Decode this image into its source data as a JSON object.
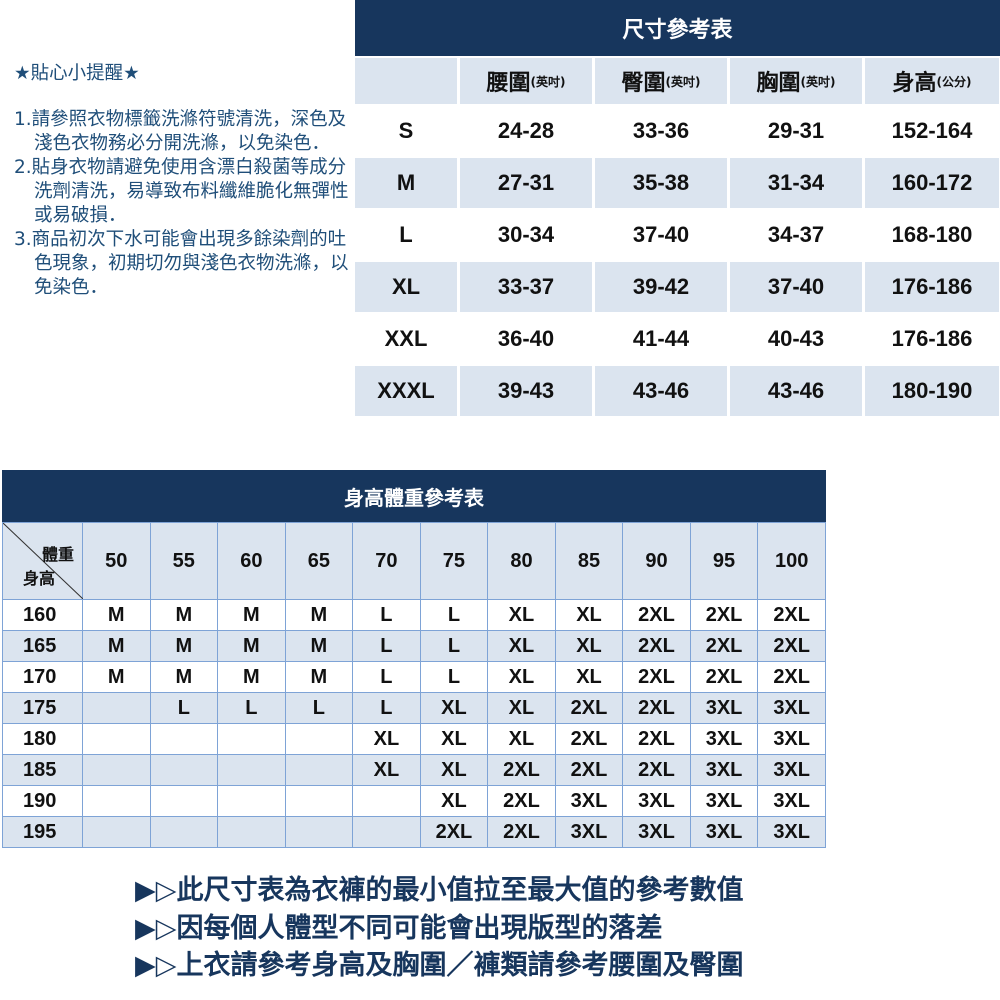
{
  "tips": {
    "title": "★貼心小提醒★",
    "items": [
      "1.請參照衣物標籤洗滌符號清洗，深色及淺色衣物務必分開洗滌，以免染色．",
      "2.貼身衣物請避免使用含漂白殺菌等成分洗劑清洗，易導致布料纖維脆化無彈性或易破損．",
      "3.商品初次下水可能會出現多餘染劑的吐色現象，初期切勿與淺色衣物洗滌，以免染色．"
    ]
  },
  "size_table": {
    "title": "尺寸參考表",
    "columns": [
      {
        "name": "腰圍",
        "unit": "(英吋)"
      },
      {
        "name": "臀圍",
        "unit": "(英吋)"
      },
      {
        "name": "胸圍",
        "unit": "(英吋)"
      },
      {
        "name": "身高",
        "unit": "(公分)"
      }
    ],
    "rows": [
      [
        "S",
        "24-28",
        "33-36",
        "29-31",
        "152-164"
      ],
      [
        "M",
        "27-31",
        "35-38",
        "31-34",
        "160-172"
      ],
      [
        "L",
        "30-34",
        "37-40",
        "34-37",
        "168-180"
      ],
      [
        "XL",
        "33-37",
        "39-42",
        "37-40",
        "176-186"
      ],
      [
        "XXL",
        "36-40",
        "41-44",
        "40-43",
        "176-186"
      ],
      [
        "XXXL",
        "39-43",
        "43-46",
        "43-46",
        "180-190"
      ]
    ]
  },
  "hw_table": {
    "title": "身高體重參考表",
    "corner_weight": "體重",
    "corner_height": "身高",
    "weights": [
      "50",
      "55",
      "60",
      "65",
      "70",
      "75",
      "80",
      "85",
      "90",
      "95",
      "100"
    ],
    "rows": [
      [
        "160",
        "M",
        "M",
        "M",
        "M",
        "L",
        "L",
        "XL",
        "XL",
        "2XL",
        "2XL",
        "2XL"
      ],
      [
        "165",
        "M",
        "M",
        "M",
        "M",
        "L",
        "L",
        "XL",
        "XL",
        "2XL",
        "2XL",
        "2XL"
      ],
      [
        "170",
        "M",
        "M",
        "M",
        "M",
        "L",
        "L",
        "XL",
        "XL",
        "2XL",
        "2XL",
        "2XL"
      ],
      [
        "175",
        "",
        "L",
        "L",
        "L",
        "L",
        "XL",
        "XL",
        "2XL",
        "2XL",
        "3XL",
        "3XL"
      ],
      [
        "180",
        "",
        "",
        "",
        "",
        "XL",
        "XL",
        "XL",
        "2XL",
        "2XL",
        "3XL",
        "3XL"
      ],
      [
        "185",
        "",
        "",
        "",
        "",
        "XL",
        "XL",
        "2XL",
        "2XL",
        "2XL",
        "3XL",
        "3XL"
      ],
      [
        "190",
        "",
        "",
        "",
        "",
        "",
        "XL",
        "2XL",
        "3XL",
        "3XL",
        "3XL",
        "3XL"
      ],
      [
        "195",
        "",
        "",
        "",
        "",
        "",
        "2XL",
        "2XL",
        "3XL",
        "3XL",
        "3XL",
        "3XL"
      ]
    ]
  },
  "notes": [
    "▶▷此尺寸表為衣褲的最小值拉至最大值的參考數值",
    "▶▷因每個人體型不同可能會出現版型的落差",
    "▶▷上衣請參考身高及胸圍／褲類請參考腰圍及臀圍"
  ],
  "colors": {
    "navy": "#17365d",
    "light_blue": "#dbe4ef",
    "grid": "#7ea3d6",
    "tip_text": "#1f4e79"
  }
}
